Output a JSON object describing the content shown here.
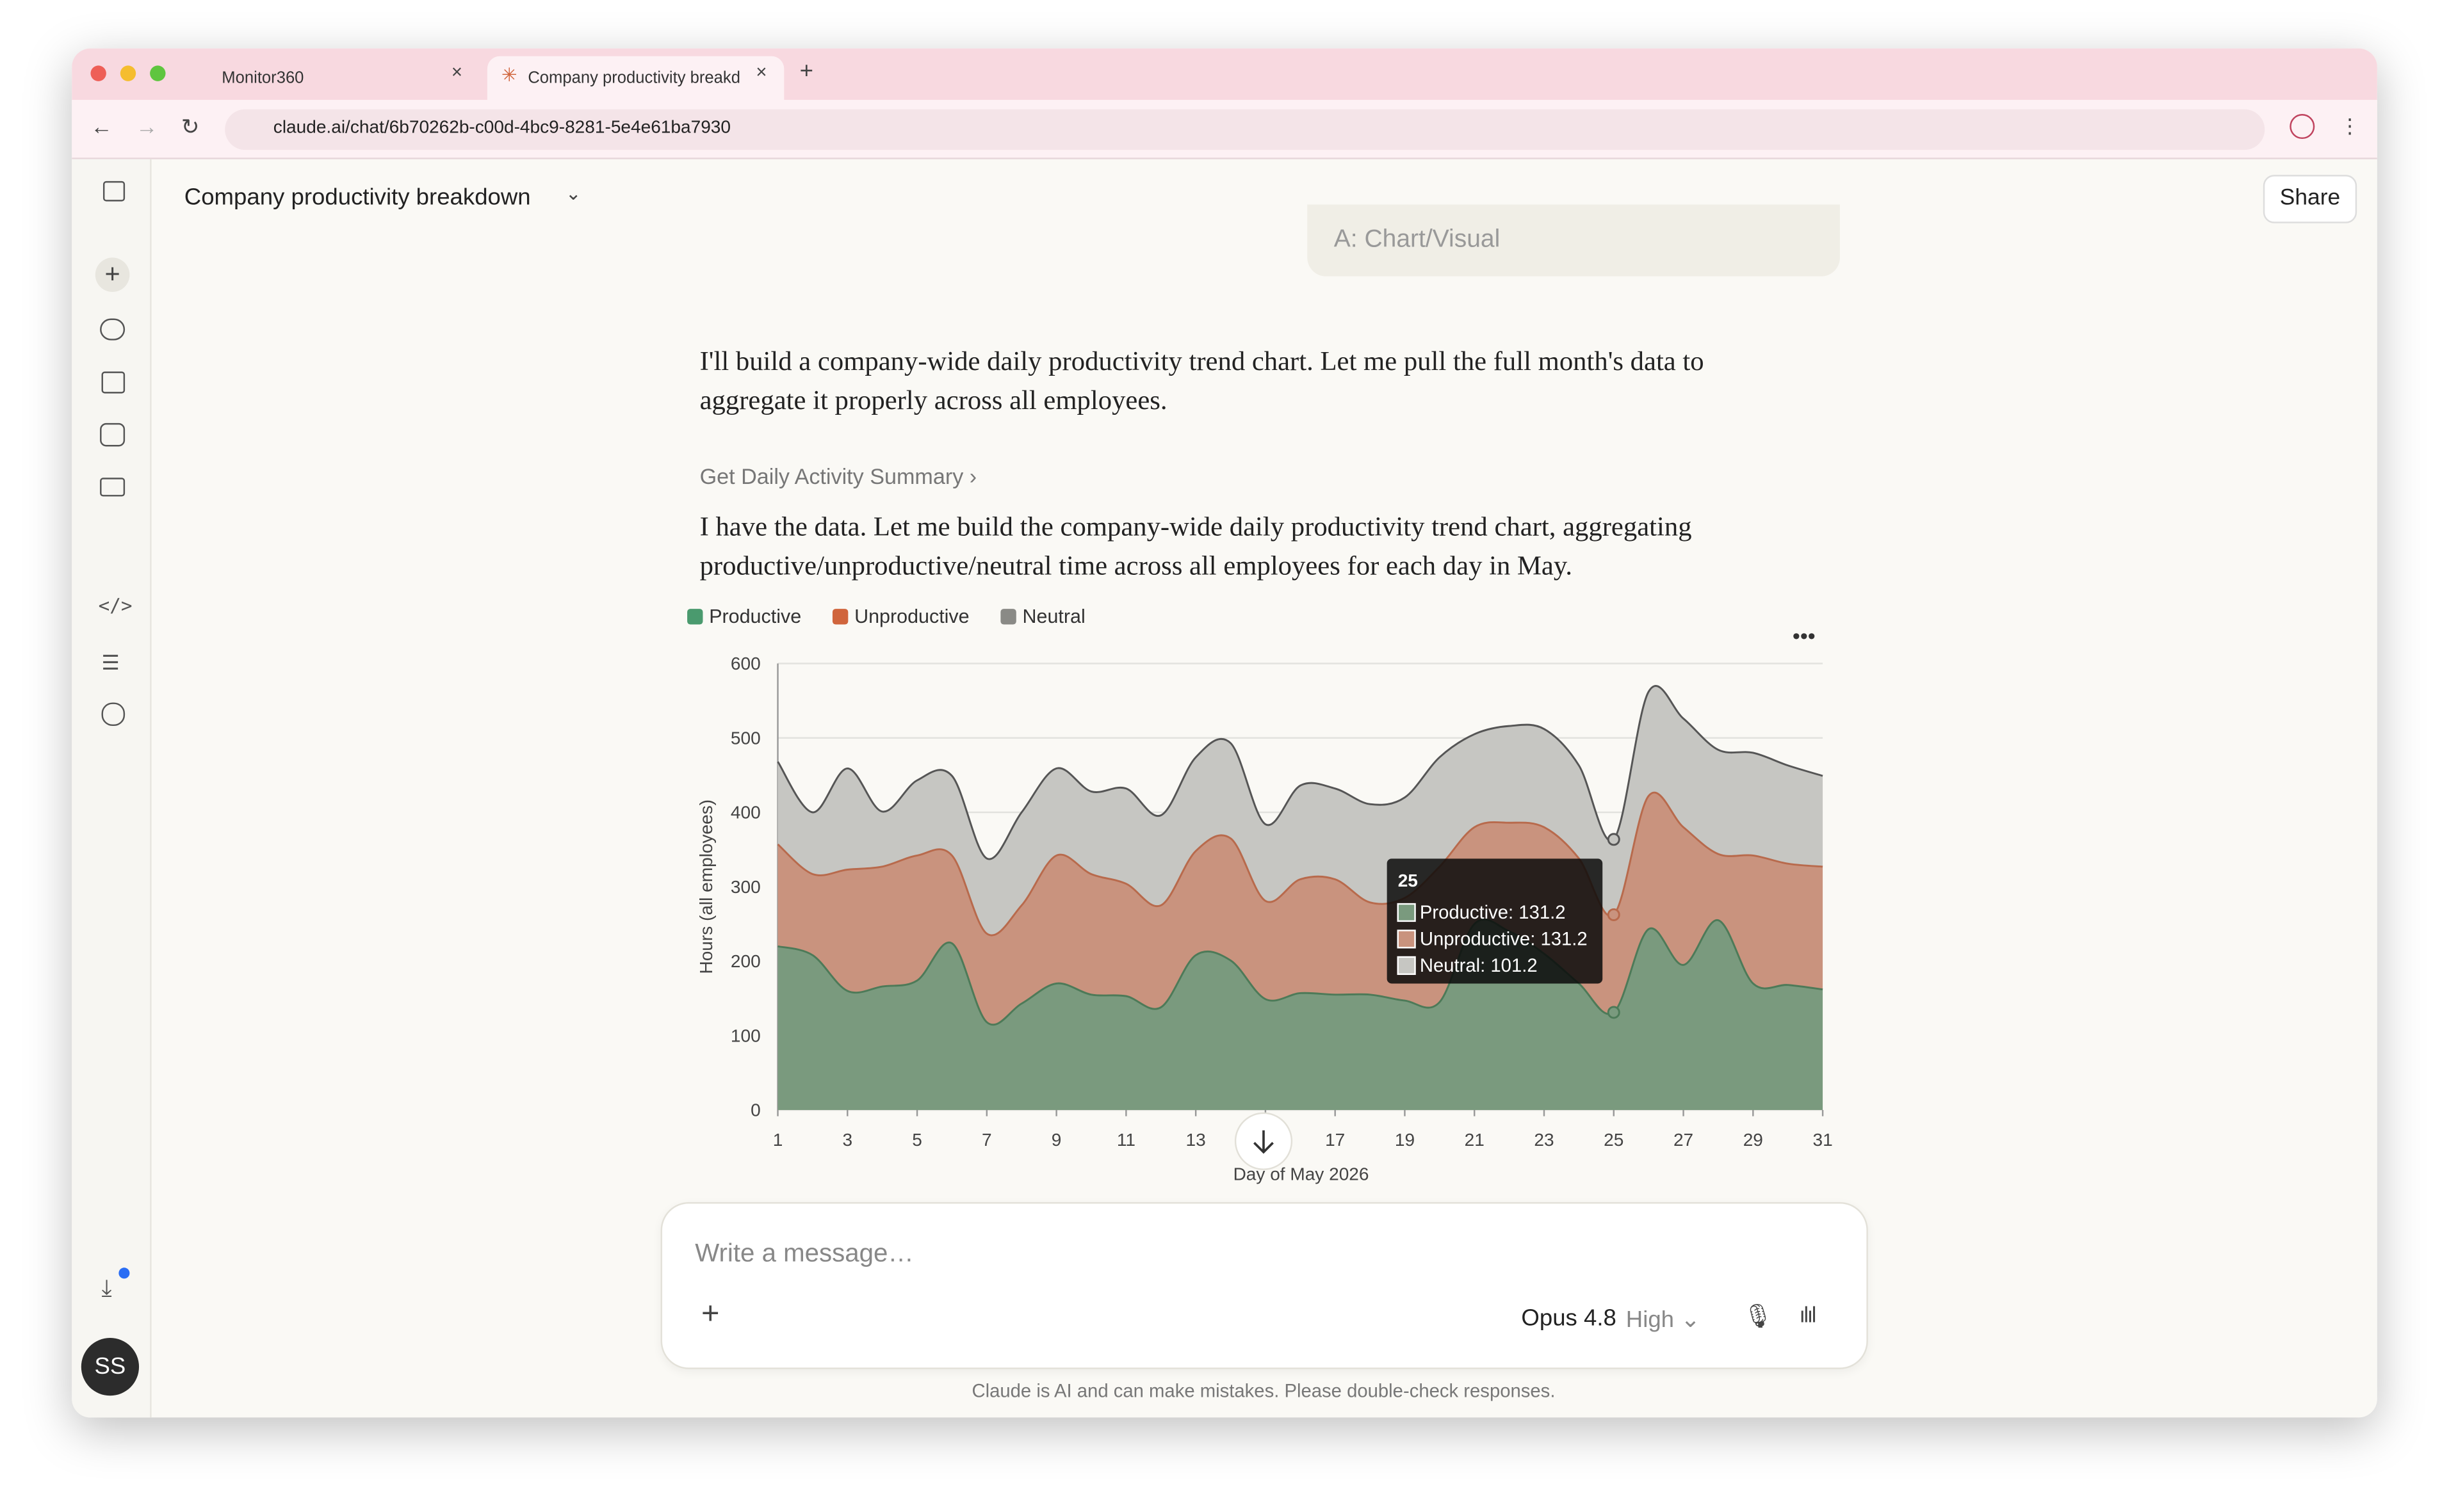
{
  "browser": {
    "tabs": [
      "Monitor360",
      "Company productivity breakdown"
    ],
    "url": "claude.ai/chat/6b70262b-c00d-4bc9-8281-5e4e61ba7930"
  },
  "header": {
    "title": "Company productivity breakdown",
    "share": "Share"
  },
  "conversation": {
    "previous_user_message": "A: Chart/Visual",
    "messages": [
      "I'll build a company-wide daily productivity trend chart. Let me pull the full month's data to aggregate it properly across all employees.",
      "I have the data. Let me build the company-wide daily productivity trend chart, aggregating productive/unproductive/neutral time across all employees for each day in May."
    ],
    "tool_call": "Get Daily Activity Summary"
  },
  "chart_data": {
    "type": "area",
    "stacked": true,
    "ylabel": "Hours (all employees)",
    "xlabel": "Day of May 2026",
    "x": [
      1,
      2,
      3,
      4,
      5,
      6,
      7,
      8,
      9,
      10,
      11,
      12,
      13,
      14,
      15,
      16,
      17,
      18,
      19,
      20,
      21,
      22,
      23,
      24,
      25,
      26,
      27,
      28,
      29,
      30,
      31
    ],
    "series": [
      {
        "name": "Productive",
        "color": "#4a9a6e",
        "fill": "#7a9a7e",
        "line": "#4d7a58",
        "values": [
          220,
          208,
          160,
          166,
          174,
          224,
          118,
          143,
          170,
          155,
          153,
          138,
          208,
          201,
          149,
          157,
          155,
          155,
          147,
          145,
          250,
          240,
          210,
          170,
          131.2,
          243,
          195,
          255,
          170,
          168,
          162
        ]
      },
      {
        "name": "Unproductive",
        "color": "#d0653c",
        "fill": "#c9937e",
        "line": "#b86a4c",
        "values": [
          137,
          109,
          163,
          161,
          168,
          118,
          119,
          132,
          172,
          162,
          151,
          137,
          140,
          164,
          132,
          153,
          155,
          124,
          138,
          182,
          130,
          146,
          170,
          168,
          131.2,
          179,
          185,
          89,
          172,
          163,
          165
        ]
      },
      {
        "name": "Neutral",
        "color": "#8a8a86",
        "fill": "#c6c6c2",
        "line": "#555555",
        "values": [
          111,
          83,
          136,
          74,
          101,
          107,
          101,
          125,
          117,
          111,
          128,
          121,
          126,
          128,
          103,
          126,
          122,
          132,
          135,
          147,
          125,
          130,
          132,
          125,
          101.2,
          140,
          146,
          140,
          138,
          132,
          122
        ]
      }
    ],
    "xlim": [
      1,
      31
    ],
    "xticks": [
      1,
      3,
      5,
      7,
      9,
      11,
      13,
      15,
      17,
      19,
      21,
      23,
      25,
      27,
      29,
      31
    ],
    "ylim": [
      0,
      600
    ],
    "yticks": [
      0,
      100,
      200,
      300,
      400,
      500,
      600
    ],
    "grid": true,
    "legend": "top-left",
    "tooltip": {
      "index": 24,
      "title": "25",
      "lines": [
        "Productive: 131.2",
        "Unproductive: 131.2",
        "Neutral: 101.2"
      ]
    }
  },
  "composer": {
    "placeholder": "Write a message…",
    "model": "Opus 4.8",
    "effort": "High"
  },
  "footer": {
    "disclaimer": "Claude is AI and can make mistakes. Please double-check responses."
  },
  "user": {
    "initials": "SS"
  }
}
